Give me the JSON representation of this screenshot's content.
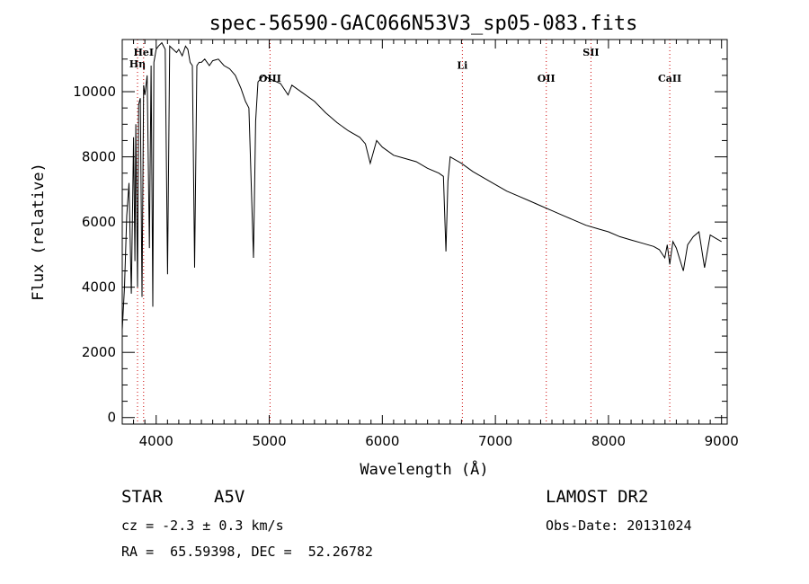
{
  "chart_data": {
    "type": "line",
    "title": "spec-56590-GAC066N53V3_sp05-083.fits",
    "xlabel": "Wavelength (Å)",
    "ylabel": "Flux (relative)",
    "xlim": [
      3700,
      9050
    ],
    "ylim": [
      -200,
      11600
    ],
    "xticks": [
      4000,
      5000,
      6000,
      7000,
      8000,
      9000
    ],
    "xtick_labels": [
      "4000",
      "5000",
      "6000",
      "7000",
      "8000",
      "9000"
    ],
    "yticks": [
      0,
      2000,
      4000,
      6000,
      8000,
      10000
    ],
    "ytick_labels": [
      "0",
      "2000",
      "4000",
      "6000",
      "8000",
      "10000"
    ],
    "grid": false,
    "line_color": "#000000",
    "marker_color": "#cc0000",
    "spectral_lines": [
      {
        "label": "Hη",
        "wavelength": 3835,
        "label_y": 10750
      },
      {
        "label": "HeI",
        "wavelength": 3889,
        "label_y": 11100
      },
      {
        "label": "OIII",
        "wavelength": 5007,
        "label_y": 10300
      },
      {
        "label": "Li",
        "wavelength": 6708,
        "label_y": 10700
      },
      {
        "label": "OII",
        "wavelength": 7450,
        "label_y": 10300
      },
      {
        "label": "SII",
        "wavelength": 7845,
        "label_y": 11100
      },
      {
        "label": "CaII",
        "wavelength": 8542,
        "label_y": 10300
      }
    ],
    "series": [
      {
        "x": [
          3700,
          3720,
          3740,
          3760,
          3780,
          3800,
          3812,
          3820,
          3835,
          3845,
          3860,
          3875,
          3889,
          3900,
          3920,
          3940,
          3955,
          3970,
          3980,
          3990,
          4000,
          4020,
          4050,
          4080,
          4101,
          4120,
          4150,
          4180,
          4200,
          4230,
          4260,
          4280,
          4300,
          4320,
          4340,
          4360,
          4380,
          4400,
          4430,
          4470,
          4500,
          4550,
          4600,
          4650,
          4700,
          4750,
          4790,
          4820,
          4861,
          4880,
          4900,
          4950,
          5000,
          5100,
          5167,
          5200,
          5300,
          5400,
          5500,
          5600,
          5700,
          5800,
          5850,
          5893,
          5950,
          6000,
          6100,
          6200,
          6300,
          6400,
          6500,
          6540,
          6563,
          6580,
          6600,
          6700,
          6800,
          6900,
          7000,
          7100,
          7200,
          7300,
          7400,
          7500,
          7600,
          7700,
          7800,
          7900,
          8000,
          8100,
          8200,
          8300,
          8400,
          8450,
          8498,
          8520,
          8542,
          8570,
          8600,
          8662,
          8700,
          8750,
          8800,
          8850,
          8900,
          8950,
          9000
        ],
        "y": [
          2700,
          4000,
          6200,
          7200,
          3800,
          8600,
          4800,
          9000,
          4000,
          9600,
          9800,
          3700,
          10200,
          9900,
          10500,
          5200,
          10800,
          3400,
          10900,
          11100,
          11300,
          11400,
          11500,
          11300,
          4400,
          11400,
          11300,
          11200,
          11300,
          11100,
          11400,
          11300,
          10900,
          10800,
          4600,
          10800,
          10900,
          10900,
          11000,
          10800,
          10950,
          11000,
          10800,
          10700,
          10500,
          10100,
          9700,
          9500,
          4900,
          9100,
          10300,
          10500,
          10400,
          10250,
          9900,
          10200,
          9950,
          9700,
          9350,
          9050,
          8800,
          8600,
          8400,
          7800,
          8500,
          8300,
          8050,
          7950,
          7850,
          7650,
          7500,
          7400,
          5100,
          7250,
          8000,
          7800,
          7550,
          7350,
          7150,
          6950,
          6800,
          6650,
          6500,
          6350,
          6200,
          6050,
          5900,
          5800,
          5700,
          5550,
          5450,
          5350,
          5250,
          5150,
          4900,
          5300,
          4700,
          5400,
          5200,
          4500,
          5300,
          5550,
          5700,
          4600,
          5600,
          5500,
          5400
        ]
      }
    ]
  },
  "info": {
    "class": "STAR",
    "subclass": "A5V",
    "survey": "LAMOST DR2",
    "cz": "cz = -2.3 ± 0.3 km/s",
    "obs_date": "Obs-Date: 20131024",
    "coords": "RA =  65.59398, DEC =  52.26782"
  }
}
